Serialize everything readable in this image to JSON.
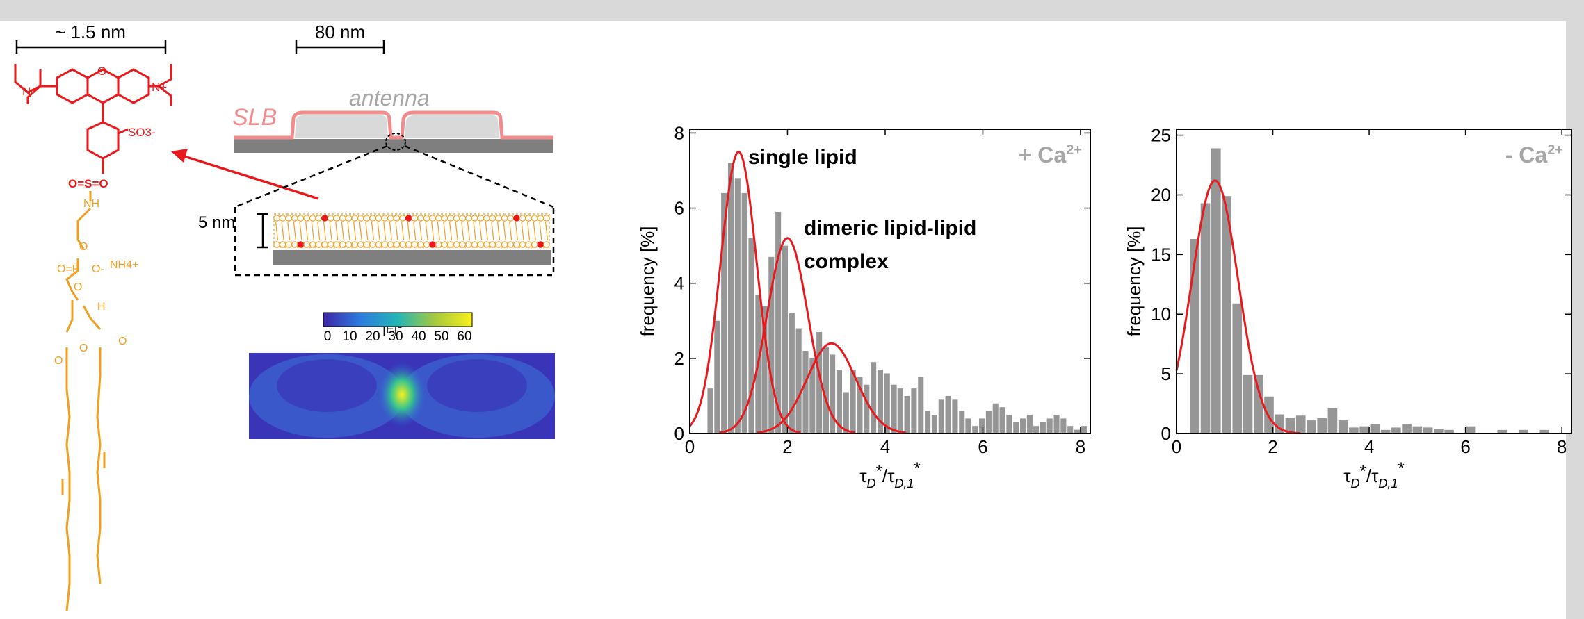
{
  "figure": {
    "molecule": {
      "size_label": "~ 1.5 nm",
      "dye_labels": [
        "N",
        "N+",
        "O",
        "SO3-"
      ],
      "linker_labels": [
        "O=S=O",
        "NH"
      ],
      "lipid_labels": [
        "O",
        "O=P",
        "O-",
        "NH4+",
        "H",
        "O",
        "O",
        "O",
        "O"
      ]
    },
    "schematic": {
      "scale_label": "80 nm",
      "slb_label": "SLB",
      "antenna_label": "antenna",
      "thickness_label": "5 nm",
      "colorbar": {
        "title": "|E|",
        "title_sup": "2",
        "ticks": [
          "0",
          "10",
          "20",
          "30",
          "40",
          "50",
          "60"
        ]
      }
    }
  },
  "chart_data": [
    {
      "type": "bar",
      "title": "+ Ca",
      "title_sup": "2+",
      "xlabel": "τ_D*/τ_D,1*",
      "ylabel": "frequency [%]",
      "xlim": [
        0,
        8.2
      ],
      "ylim": [
        0,
        8.1
      ],
      "xticks": [
        0,
        2,
        4,
        6,
        8
      ],
      "yticks": [
        0,
        2,
        4,
        6,
        8
      ],
      "bin_width": 0.138,
      "bin_centers": [
        0.42,
        0.56,
        0.7,
        0.84,
        0.98,
        1.12,
        1.26,
        1.4,
        1.53,
        1.67,
        1.81,
        1.95,
        2.09,
        2.23,
        2.37,
        2.51,
        2.65,
        2.79,
        2.92,
        3.06,
        3.2,
        3.34,
        3.48,
        3.62,
        3.76,
        3.9,
        4.04,
        4.18,
        4.31,
        4.45,
        4.59,
        4.73,
        4.87,
        5.01,
        5.15,
        5.29,
        5.43,
        5.57,
        5.7,
        5.84,
        5.98,
        6.12,
        6.26,
        6.4,
        6.54,
        6.68,
        6.82,
        6.96,
        7.09,
        7.23,
        7.37,
        7.51,
        7.65,
        7.79,
        7.93,
        8.07
      ],
      "values": [
        1.2,
        3.0,
        6.4,
        7.2,
        6.8,
        6.4,
        5.2,
        3.7,
        3.4,
        4.7,
        5.9,
        5.0,
        3.2,
        2.8,
        2.2,
        2.0,
        2.7,
        2.3,
        2.1,
        1.7,
        1.1,
        1.7,
        1.5,
        1.3,
        1.9,
        1.7,
        1.6,
        1.3,
        1.2,
        1.0,
        1.2,
        1.5,
        0.6,
        0.5,
        0.9,
        1.0,
        0.9,
        0.6,
        0.4,
        0.2,
        0.4,
        0.6,
        0.8,
        0.7,
        0.5,
        0.3,
        0.4,
        0.5,
        0.2,
        0.3,
        0.4,
        0.5,
        0.4,
        0.2,
        0.1,
        0.2
      ],
      "fits": [
        {
          "mu": 1.0,
          "sigma": 0.37,
          "amp": 7.5
        },
        {
          "mu": 2.0,
          "sigma": 0.42,
          "amp": 5.2
        },
        {
          "mu": 2.9,
          "sigma": 0.5,
          "amp": 2.4
        }
      ],
      "annotations": [
        "single lipid",
        "dimeric lipid-lipid",
        "complex"
      ]
    },
    {
      "type": "bar",
      "title": "- Ca",
      "title_sup": "2+",
      "xlabel": "τ_D*/τ_D,1*",
      "ylabel": "frequency [%]",
      "xlim": [
        0,
        8.2
      ],
      "ylim": [
        0,
        25.5
      ],
      "xticks": [
        0,
        2,
        4,
        6,
        8
      ],
      "yticks": [
        0,
        5,
        10,
        15,
        20,
        25
      ],
      "bin_width": 0.22,
      "bin_centers": [
        0.38,
        0.6,
        0.82,
        1.04,
        1.26,
        1.48,
        1.7,
        1.92,
        2.14,
        2.36,
        2.58,
        2.8,
        3.02,
        3.24,
        3.46,
        3.68,
        3.9,
        4.12,
        4.34,
        4.56,
        4.78,
        5.0,
        5.22,
        5.44,
        5.66,
        5.88,
        6.1,
        6.32,
        6.54,
        6.76,
        6.98,
        7.2,
        7.42,
        7.64,
        7.86,
        8.08
      ],
      "values": [
        16.3,
        19.3,
        23.9,
        19.9,
        10.9,
        4.9,
        4.9,
        3.1,
        1.6,
        1.3,
        1.5,
        1.1,
        1.3,
        2.1,
        1.1,
        0.5,
        0.6,
        0.8,
        0.3,
        0.5,
        0.8,
        0.6,
        0.5,
        0.4,
        0.3,
        0,
        0.6,
        0,
        0,
        0.3,
        0,
        0.3,
        0,
        0.3,
        0,
        0
      ],
      "fits": [
        {
          "mu": 0.8,
          "sigma": 0.48,
          "amp": 21.2
        }
      ]
    }
  ]
}
